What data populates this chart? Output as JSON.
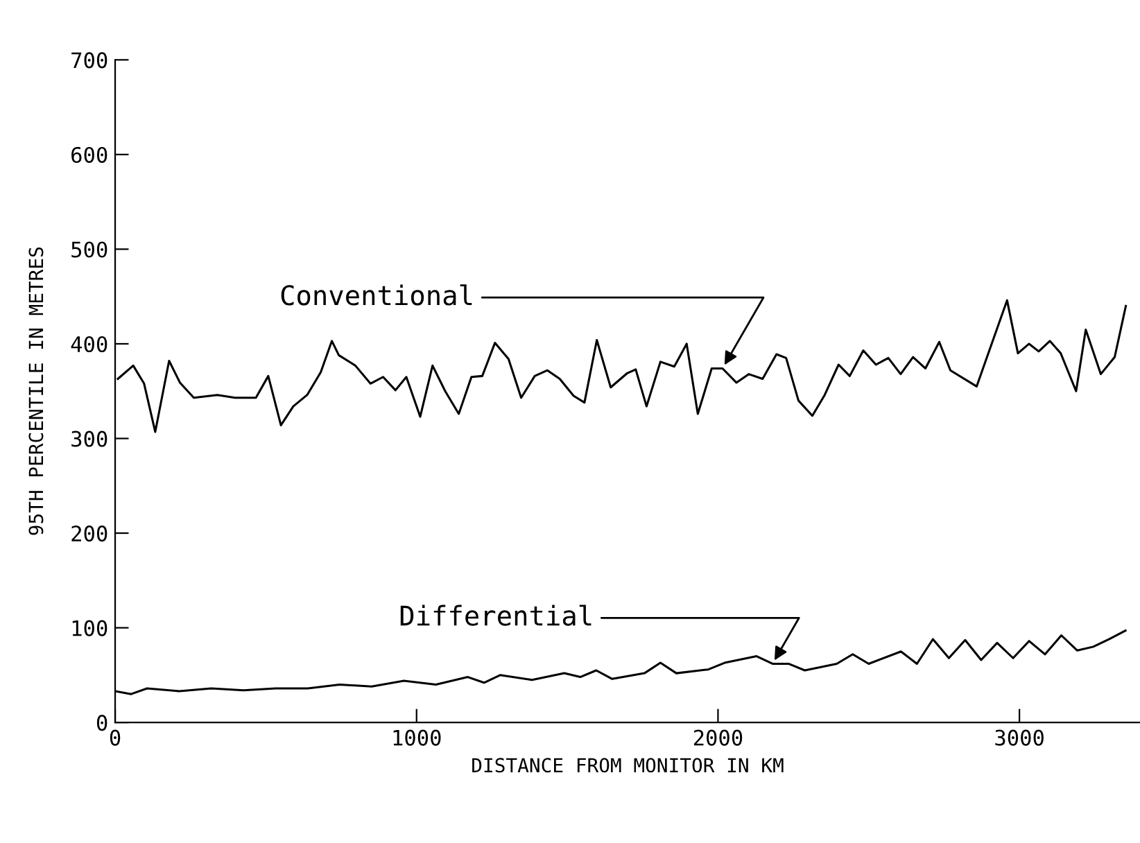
{
  "chart_data": {
    "type": "line",
    "xlabel": "DISTANCE FROM MONITOR IN KM",
    "ylabel": "95TH PERCENTILE IN METRES",
    "xlim": [
      0,
      3400
    ],
    "xticks": [
      0,
      1000,
      2000,
      3000
    ],
    "ylim": [
      0,
      700
    ],
    "yticks": [
      0,
      100,
      200,
      300,
      400,
      500,
      600,
      700
    ],
    "grid": false,
    "legend": false,
    "marker": "none",
    "line_style": "solid",
    "series": [
      {
        "color": "#000000",
        "x": [
          9,
          60,
          96,
          133,
          179,
          215,
          261,
          339,
          398,
          467,
          508,
          550,
          591,
          637,
          682,
          719,
          742,
          797,
          847,
          889,
          930,
          966,
          1012,
          1053,
          1095,
          1140,
          1182,
          1218,
          1260,
          1305,
          1347,
          1392,
          1434,
          1475,
          1521,
          1557,
          1598,
          1644,
          1699,
          1727,
          1763,
          1809,
          1855,
          1896,
          1933,
          1979,
          2015,
          2061,
          2102,
          2148,
          2194,
          2226,
          2267,
          2313,
          2354,
          2400,
          2437,
          2482,
          2524,
          2565,
          2606,
          2647,
          2688,
          2734,
          2771,
          2858,
          2959,
          2995,
          3032,
          3064,
          3101,
          3137,
          3188,
          3220,
          3270,
          3316,
          3353
        ],
        "values": [
          363,
          377,
          358,
          307,
          382,
          359,
          343,
          346,
          343,
          343,
          366,
          314,
          334,
          346,
          370,
          403,
          388,
          377,
          358,
          365,
          351,
          365,
          323,
          377,
          350,
          326,
          365,
          366,
          401,
          384,
          343,
          366,
          372,
          363,
          345,
          338,
          404,
          354,
          369,
          373,
          334,
          381,
          376,
          400,
          326,
          374,
          374,
          359,
          368,
          363,
          389,
          385,
          340,
          324,
          346,
          378,
          366,
          393,
          378,
          385,
          368,
          386,
          374,
          402,
          372,
          355,
          446,
          390,
          400,
          392,
          403,
          390,
          350,
          415,
          368,
          386,
          440
        ]
      },
      {
        "color": "#000000",
        "x": [
          0,
          53,
          106,
          213,
          319,
          426,
          532,
          639,
          745,
          851,
          958,
          1064,
          1170,
          1224,
          1277,
          1383,
          1490,
          1543,
          1596,
          1649,
          1756,
          1809,
          1862,
          1968,
          2022,
          2128,
          2181,
          2234,
          2288,
          2394,
          2447,
          2500,
          2607,
          2660,
          2713,
          2766,
          2820,
          2873,
          2926,
          2979,
          3032,
          3085,
          3139,
          3192,
          3245,
          3298,
          3352
        ],
        "values": [
          33,
          30,
          36,
          33,
          36,
          34,
          36,
          36,
          40,
          38,
          44,
          40,
          48,
          42,
          50,
          45,
          52,
          48,
          55,
          46,
          52,
          63,
          52,
          56,
          63,
          70,
          62,
          62,
          55,
          62,
          72,
          62,
          75,
          62,
          88,
          68,
          87,
          66,
          84,
          68,
          86,
          72,
          92,
          76,
          80,
          88,
          97
        ]
      }
    ],
    "annotations": [
      {
        "text": "Conventional",
        "x": 2015,
        "y": 374
      },
      {
        "text": "Differential",
        "x": 2181,
        "y": 62
      }
    ]
  }
}
